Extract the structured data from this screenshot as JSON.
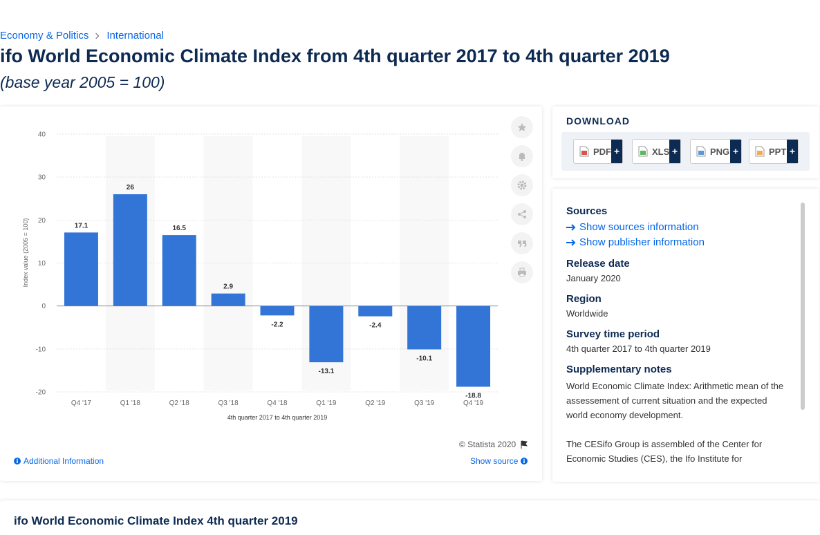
{
  "breadcrumb": [
    "Economy & Politics",
    "International"
  ],
  "title": "ifo World Economic Climate Index from 4th quarter 2017 to 4th quarter 2019",
  "subtitle": "(base year 2005 = 100)",
  "chart_data": {
    "type": "bar",
    "categories": [
      "Q4 '17",
      "Q1 '18",
      "Q2 '18",
      "Q3 '18",
      "Q4 '18",
      "Q1 '19",
      "Q2 '19",
      "Q3 '19",
      "Q4 '19"
    ],
    "values": [
      17.1,
      26,
      16.5,
      2.9,
      -2.2,
      -13.1,
      -2.4,
      -10.1,
      -18.8
    ],
    "color": "#3375d6",
    "ylim": [
      -20,
      40
    ],
    "yticks": [
      -20,
      -10,
      0,
      10,
      20,
      30,
      40
    ],
    "y_label": "Index value (2005 = 100)",
    "x_label": "4th quarter 2017 to 4th quarter 2019",
    "grid": true
  },
  "credit": "© Statista 2020",
  "additional_info": "Additional Information",
  "show_source": "Show source",
  "download": {
    "heading": "DOWNLOAD",
    "formats": [
      "PDF",
      "XLS",
      "PNG",
      "PPT"
    ]
  },
  "details": {
    "sources_heading": "Sources",
    "sources_links": [
      "Show sources information",
      "Show publisher information"
    ],
    "items": [
      {
        "label": "Release date",
        "value": "January 2020"
      },
      {
        "label": "Region",
        "value": "Worldwide"
      },
      {
        "label": "Survey time period",
        "value": "4th quarter 2017 to 4th quarter 2019"
      }
    ],
    "notes_heading": "Supplementary notes",
    "notes": [
      "World Economic Climate Index: Arithmetic mean of the assessement of current situation and the expected world economy development.",
      "The CESifo Group is assembled of the Center for Economic Studies (CES), the Ifo Institute for"
    ]
  },
  "next_title": "ifo World Economic Climate Index 4th quarter 2019"
}
